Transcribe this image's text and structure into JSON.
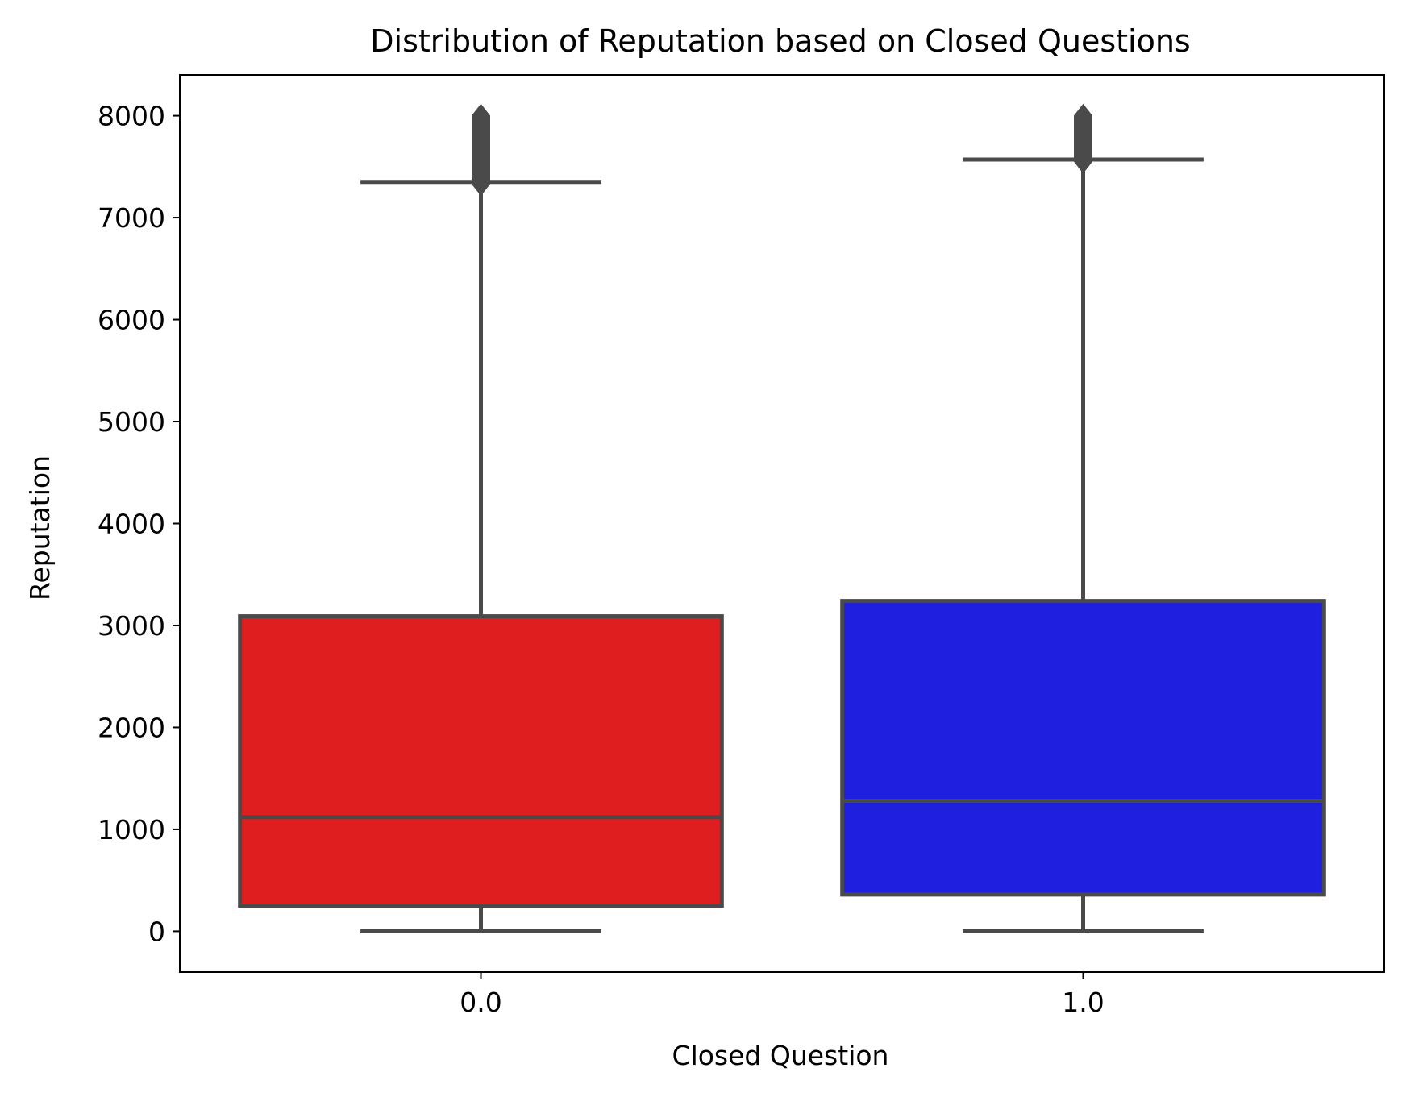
{
  "chart_data": {
    "type": "box",
    "title": "Distribution of Reputation based on Closed Questions",
    "xlabel": "Closed Question",
    "ylabel": "Reputation",
    "ylim": [
      -400,
      8400
    ],
    "yticks": [
      0,
      1000,
      2000,
      3000,
      4000,
      5000,
      6000,
      7000,
      8000
    ],
    "categories": [
      "0.0",
      "1.0"
    ],
    "grid": false,
    "boxes": [
      {
        "category": "0.0",
        "color": "#df1f1f",
        "whisker_low": 0,
        "q1": 250,
        "median": 1120,
        "q3": 3090,
        "whisker_high": 7350,
        "outliers_low": 7330,
        "outliers_high": 8000
      },
      {
        "category": "1.0",
        "color": "#1f1fdf",
        "whisker_low": 0,
        "q1": 360,
        "median": 1280,
        "q3": 3240,
        "whisker_high": 7570,
        "outliers_low": 7550,
        "outliers_high": 8000
      }
    ],
    "line_color": "#4a4a4a"
  }
}
